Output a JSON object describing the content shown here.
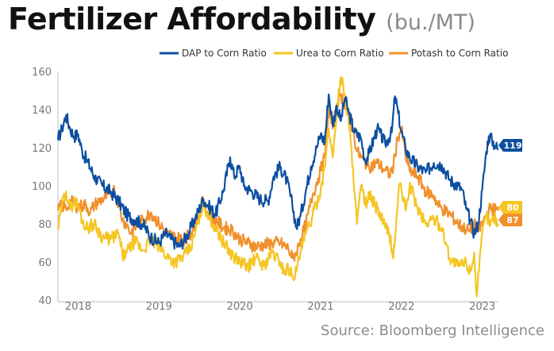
{
  "header": {
    "title": "Fertilizer Affordability",
    "subtitle": "(bu./MT)"
  },
  "footer": {
    "source": "Source: Bloomberg Intelligence"
  },
  "chart_data": {
    "type": "line",
    "title": "Fertilizer Affordability",
    "subtitle": "(bu./MT)",
    "xlabel": "",
    "ylabel": "",
    "xlim": [
      2017.75,
      2023.2
    ],
    "ylim": [
      40,
      160
    ],
    "y_ticks": [
      40,
      60,
      80,
      100,
      120,
      140,
      160
    ],
    "x_tick_labels": [
      {
        "label": "2018",
        "x": 2018.0
      },
      {
        "label": "2019",
        "x": 2019.0
      },
      {
        "label": "2020",
        "x": 2020.0
      },
      {
        "label": "2021",
        "x": 2021.0
      },
      {
        "label": "2022",
        "x": 2022.0
      },
      {
        "label": "2023",
        "x": 2023.0
      }
    ],
    "grid": false,
    "legend_position": "top-right",
    "series": [
      {
        "name": "DAP to Corn Ratio",
        "color": "#0c4fa0",
        "end_label": "119",
        "end_value": 119,
        "points": [
          [
            2017.75,
            124
          ],
          [
            2017.8,
            130
          ],
          [
            2017.85,
            137
          ],
          [
            2017.9,
            130
          ],
          [
            2017.95,
            126
          ],
          [
            2018.0,
            127
          ],
          [
            2018.05,
            118
          ],
          [
            2018.1,
            114
          ],
          [
            2018.2,
            105
          ],
          [
            2018.3,
            100
          ],
          [
            2018.4,
            97
          ],
          [
            2018.5,
            92
          ],
          [
            2018.6,
            85
          ],
          [
            2018.7,
            82
          ],
          [
            2018.8,
            80
          ],
          [
            2018.9,
            73
          ],
          [
            2019.0,
            70
          ],
          [
            2019.08,
            75
          ],
          [
            2019.15,
            72
          ],
          [
            2019.25,
            68
          ],
          [
            2019.35,
            74
          ],
          [
            2019.45,
            83
          ],
          [
            2019.55,
            93
          ],
          [
            2019.6,
            90
          ],
          [
            2019.7,
            85
          ],
          [
            2019.8,
            98
          ],
          [
            2019.88,
            115
          ],
          [
            2019.93,
            105
          ],
          [
            2020.0,
            110
          ],
          [
            2020.05,
            100
          ],
          [
            2020.15,
            97
          ],
          [
            2020.25,
            93
          ],
          [
            2020.35,
            92
          ],
          [
            2020.42,
            105
          ],
          [
            2020.5,
            110
          ],
          [
            2020.58,
            103
          ],
          [
            2020.65,
            90
          ],
          [
            2020.7,
            78
          ],
          [
            2020.75,
            84
          ],
          [
            2020.82,
            98
          ],
          [
            2020.88,
            110
          ],
          [
            2020.95,
            120
          ],
          [
            2021.0,
            127
          ],
          [
            2021.05,
            123
          ],
          [
            2021.1,
            148
          ],
          [
            2021.15,
            132
          ],
          [
            2021.2,
            142
          ],
          [
            2021.25,
            134
          ],
          [
            2021.3,
            146
          ],
          [
            2021.35,
            138
          ],
          [
            2021.42,
            128
          ],
          [
            2021.5,
            125
          ],
          [
            2021.55,
            113
          ],
          [
            2021.6,
            117
          ],
          [
            2021.7,
            130
          ],
          [
            2021.8,
            122
          ],
          [
            2021.88,
            128
          ],
          [
            2021.92,
            147
          ],
          [
            2021.96,
            138
          ],
          [
            2022.0,
            128
          ],
          [
            2022.05,
            120
          ],
          [
            2022.1,
            115
          ],
          [
            2022.2,
            110
          ],
          [
            2022.3,
            107
          ],
          [
            2022.4,
            112
          ],
          [
            2022.5,
            111
          ],
          [
            2022.6,
            103
          ],
          [
            2022.7,
            100
          ],
          [
            2022.75,
            98
          ],
          [
            2022.8,
            88
          ],
          [
            2022.85,
            82
          ],
          [
            2022.9,
            75
          ],
          [
            2022.95,
            80
          ],
          [
            2023.0,
            98
          ],
          [
            2023.05,
            118
          ],
          [
            2023.08,
            126
          ],
          [
            2023.12,
            124
          ],
          [
            2023.16,
            121
          ],
          [
            2023.2,
            119
          ]
        ]
      },
      {
        "name": "Urea to Corn Ratio",
        "color": "#f5c523",
        "end_label": "80",
        "end_value": 80,
        "points": [
          [
            2017.75,
            77
          ],
          [
            2017.8,
            90
          ],
          [
            2017.85,
            97
          ],
          [
            2017.9,
            88
          ],
          [
            2017.95,
            92
          ],
          [
            2018.0,
            90
          ],
          [
            2018.05,
            82
          ],
          [
            2018.1,
            78
          ],
          [
            2018.2,
            80
          ],
          [
            2018.3,
            73
          ],
          [
            2018.4,
            72
          ],
          [
            2018.5,
            75
          ],
          [
            2018.55,
            63
          ],
          [
            2018.6,
            65
          ],
          [
            2018.7,
            71
          ],
          [
            2018.8,
            66
          ],
          [
            2018.9,
            72
          ],
          [
            2019.0,
            68
          ],
          [
            2019.1,
            63
          ],
          [
            2019.2,
            60
          ],
          [
            2019.3,
            63
          ],
          [
            2019.4,
            68
          ],
          [
            2019.48,
            80
          ],
          [
            2019.55,
            92
          ],
          [
            2019.6,
            85
          ],
          [
            2019.7,
            78
          ],
          [
            2019.8,
            70
          ],
          [
            2019.9,
            64
          ],
          [
            2020.0,
            60
          ],
          [
            2020.1,
            58
          ],
          [
            2020.2,
            62
          ],
          [
            2020.3,
            58
          ],
          [
            2020.4,
            65
          ],
          [
            2020.5,
            60
          ],
          [
            2020.55,
            55
          ],
          [
            2020.6,
            57
          ],
          [
            2020.65,
            53
          ],
          [
            2020.7,
            55
          ],
          [
            2020.75,
            65
          ],
          [
            2020.82,
            75
          ],
          [
            2020.9,
            84
          ],
          [
            2021.0,
            98
          ],
          [
            2021.05,
            110
          ],
          [
            2021.1,
            130
          ],
          [
            2021.15,
            115
          ],
          [
            2021.2,
            140
          ],
          [
            2021.25,
            157
          ],
          [
            2021.3,
            148
          ],
          [
            2021.35,
            132
          ],
          [
            2021.4,
            110
          ],
          [
            2021.45,
            80
          ],
          [
            2021.5,
            100
          ],
          [
            2021.55,
            90
          ],
          [
            2021.6,
            95
          ],
          [
            2021.7,
            88
          ],
          [
            2021.8,
            78
          ],
          [
            2021.85,
            75
          ],
          [
            2021.9,
            62
          ],
          [
            2021.93,
            78
          ],
          [
            2021.97,
            100
          ],
          [
            2022.0,
            98
          ],
          [
            2022.05,
            87
          ],
          [
            2022.1,
            100
          ],
          [
            2022.15,
            95
          ],
          [
            2022.2,
            88
          ],
          [
            2022.3,
            80
          ],
          [
            2022.4,
            83
          ],
          [
            2022.5,
            78
          ],
          [
            2022.55,
            70
          ],
          [
            2022.6,
            62
          ],
          [
            2022.7,
            58
          ],
          [
            2022.8,
            60
          ],
          [
            2022.85,
            55
          ],
          [
            2022.9,
            65
          ],
          [
            2022.93,
            42
          ],
          [
            2022.96,
            55
          ],
          [
            2023.0,
            75
          ],
          [
            2023.05,
            85
          ],
          [
            2023.1,
            80
          ],
          [
            2023.15,
            84
          ],
          [
            2023.2,
            80
          ]
        ]
      },
      {
        "name": "Potash to Corn Ratio",
        "color": "#f0902c",
        "end_label": "87",
        "end_value": 87,
        "points": [
          [
            2017.75,
            87
          ],
          [
            2017.8,
            90
          ],
          [
            2017.85,
            88
          ],
          [
            2017.9,
            92
          ],
          [
            2018.0,
            89
          ],
          [
            2018.1,
            90
          ],
          [
            2018.15,
            86
          ],
          [
            2018.2,
            90
          ],
          [
            2018.3,
            93
          ],
          [
            2018.4,
            96
          ],
          [
            2018.45,
            98
          ],
          [
            2018.5,
            91
          ],
          [
            2018.55,
            82
          ],
          [
            2018.6,
            80
          ],
          [
            2018.65,
            75
          ],
          [
            2018.7,
            78
          ],
          [
            2018.8,
            82
          ],
          [
            2018.9,
            86
          ],
          [
            2019.0,
            80
          ],
          [
            2019.1,
            75
          ],
          [
            2019.2,
            73
          ],
          [
            2019.3,
            72
          ],
          [
            2019.4,
            75
          ],
          [
            2019.48,
            84
          ],
          [
            2019.55,
            92
          ],
          [
            2019.6,
            86
          ],
          [
            2019.7,
            82
          ],
          [
            2019.8,
            78
          ],
          [
            2019.9,
            77
          ],
          [
            2020.0,
            72
          ],
          [
            2020.1,
            70
          ],
          [
            2020.2,
            68
          ],
          [
            2020.3,
            69
          ],
          [
            2020.4,
            70
          ],
          [
            2020.5,
            70
          ],
          [
            2020.6,
            67
          ],
          [
            2020.65,
            62
          ],
          [
            2020.7,
            65
          ],
          [
            2020.75,
            72
          ],
          [
            2020.82,
            80
          ],
          [
            2020.9,
            95
          ],
          [
            2021.0,
            108
          ],
          [
            2021.05,
            115
          ],
          [
            2021.1,
            140
          ],
          [
            2021.15,
            130
          ],
          [
            2021.2,
            143
          ],
          [
            2021.25,
            148
          ],
          [
            2021.3,
            142
          ],
          [
            2021.35,
            135
          ],
          [
            2021.4,
            130
          ],
          [
            2021.45,
            118
          ],
          [
            2021.5,
            115
          ],
          [
            2021.6,
            110
          ],
          [
            2021.7,
            112
          ],
          [
            2021.8,
            108
          ],
          [
            2021.85,
            106
          ],
          [
            2021.9,
            110
          ],
          [
            2021.95,
            125
          ],
          [
            2022.0,
            130
          ],
          [
            2022.05,
            116
          ],
          [
            2022.1,
            108
          ],
          [
            2022.2,
            105
          ],
          [
            2022.3,
            97
          ],
          [
            2022.4,
            95
          ],
          [
            2022.45,
            90
          ],
          [
            2022.5,
            88
          ],
          [
            2022.6,
            85
          ],
          [
            2022.7,
            80
          ],
          [
            2022.8,
            77
          ],
          [
            2022.85,
            76
          ],
          [
            2022.9,
            80
          ],
          [
            2022.95,
            76
          ],
          [
            2023.0,
            80
          ],
          [
            2023.05,
            85
          ],
          [
            2023.1,
            88
          ],
          [
            2023.2,
            87
          ]
        ]
      }
    ]
  }
}
